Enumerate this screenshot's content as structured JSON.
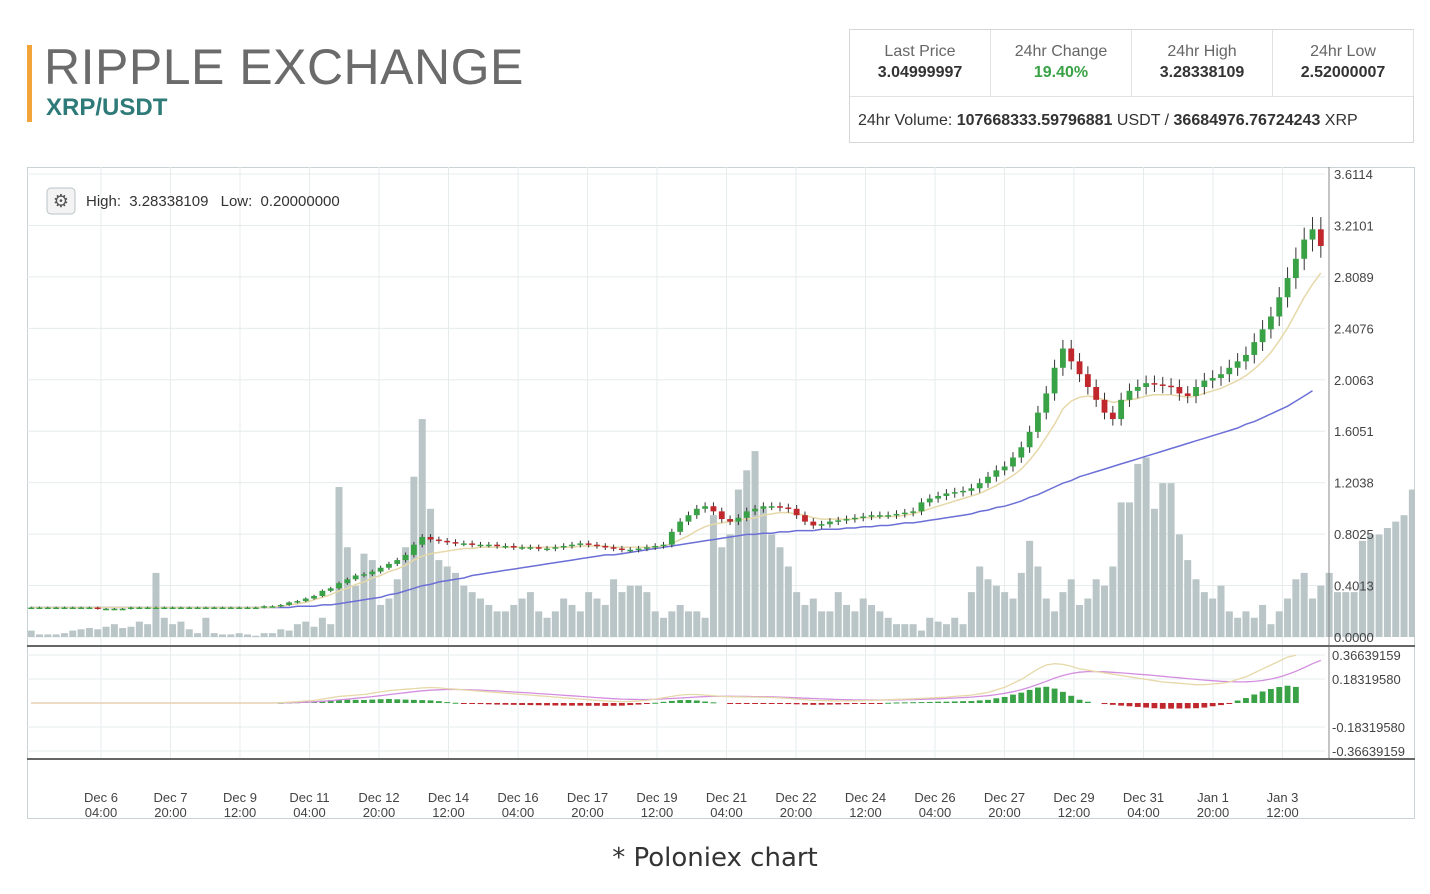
{
  "header": {
    "title": "RIPPLE EXCHANGE",
    "pair": "XRP/USDT"
  },
  "stats": {
    "last_price_label": "Last Price",
    "last_price": "3.04999997",
    "change_label": "24hr Change",
    "change": "19.40%",
    "high_label": "24hr High",
    "high": "3.28338109",
    "low_label": "24hr Low",
    "low": "2.52000007",
    "volume_label": "24hr Volume:",
    "volume_usdt": "107668333.59796881",
    "volume_usdt_unit": "USDT /",
    "volume_xrp": "36684976.76724243",
    "volume_xrp_unit": "XRP"
  },
  "chart_toolbar": {
    "high_label": "High:",
    "high_value": "3.28338109",
    "low_label": "Low:",
    "low_value": "0.20000000"
  },
  "colors": {
    "up": "#3aa246",
    "down": "#c0282d",
    "volume": "#b9c5c7",
    "ma_slow": "#6b6fd6",
    "ma_fast": "#e6d8a8",
    "macd_line": "#e6d8a8",
    "signal_line": "#d48ee0",
    "accent": "#f2a33a",
    "pair": "#2e7a78"
  },
  "caption": "* Poloniex chart",
  "chart_data": {
    "type": "candlestick",
    "price_axis": {
      "ticks": [
        "3.6114",
        "3.2101",
        "2.8089",
        "2.4076",
        "2.0063",
        "1.6051",
        "1.2038",
        "0.8025",
        "0.4013",
        "0.0000"
      ],
      "range": [
        0,
        3.6114
      ]
    },
    "macd_axis": {
      "ticks": [
        "0.36639159",
        "0.18319580",
        "-0.18319580",
        "-0.36639159"
      ],
      "range": [
        -0.3664,
        0.3664
      ]
    },
    "x_ticks": [
      {
        "day": "Dec 6",
        "time": "04:00"
      },
      {
        "day": "Dec 7",
        "time": "20:00"
      },
      {
        "day": "Dec 9",
        "time": "12:00"
      },
      {
        "day": "Dec 11",
        "time": "04:00"
      },
      {
        "day": "Dec 12",
        "time": "20:00"
      },
      {
        "day": "Dec 14",
        "time": "12:00"
      },
      {
        "day": "Dec 16",
        "time": "04:00"
      },
      {
        "day": "Dec 17",
        "time": "20:00"
      },
      {
        "day": "Dec 19",
        "time": "12:00"
      },
      {
        "day": "Dec 21",
        "time": "04:00"
      },
      {
        "day": "Dec 22",
        "time": "20:00"
      },
      {
        "day": "Dec 24",
        "time": "12:00"
      },
      {
        "day": "Dec 26",
        "time": "04:00"
      },
      {
        "day": "Dec 27",
        "time": "20:00"
      },
      {
        "day": "Dec 29",
        "time": "12:00"
      },
      {
        "day": "Dec 31",
        "time": "04:00"
      },
      {
        "day": "Jan 1",
        "time": "20:00"
      },
      {
        "day": "Jan 3",
        "time": "12:00"
      }
    ],
    "price_series": [
      0.23,
      0.23,
      0.23,
      0.23,
      0.23,
      0.23,
      0.23,
      0.23,
      0.22,
      0.22,
      0.22,
      0.22,
      0.23,
      0.23,
      0.23,
      0.23,
      0.23,
      0.23,
      0.23,
      0.23,
      0.23,
      0.23,
      0.23,
      0.23,
      0.23,
      0.23,
      0.23,
      0.23,
      0.24,
      0.24,
      0.25,
      0.27,
      0.28,
      0.3,
      0.32,
      0.36,
      0.38,
      0.42,
      0.45,
      0.48,
      0.49,
      0.51,
      0.54,
      0.57,
      0.6,
      0.64,
      0.72,
      0.78,
      0.76,
      0.75,
      0.74,
      0.73,
      0.73,
      0.72,
      0.72,
      0.72,
      0.71,
      0.71,
      0.7,
      0.7,
      0.7,
      0.69,
      0.69,
      0.7,
      0.71,
      0.72,
      0.73,
      0.72,
      0.71,
      0.7,
      0.69,
      0.68,
      0.68,
      0.69,
      0.7,
      0.71,
      0.72,
      0.82,
      0.9,
      0.95,
      1.0,
      1.02,
      0.98,
      0.92,
      0.9,
      0.93,
      0.98,
      1.0,
      1.02,
      1.02,
      1.01,
      1.0,
      0.95,
      0.9,
      0.87,
      0.88,
      0.9,
      0.91,
      0.92,
      0.93,
      0.94,
      0.95,
      0.95,
      0.95,
      0.96,
      0.97,
      0.98,
      1.05,
      1.08,
      1.1,
      1.12,
      1.13,
      1.14,
      1.16,
      1.2,
      1.25,
      1.3,
      1.33,
      1.4,
      1.48,
      1.6,
      1.75,
      1.9,
      2.1,
      2.25,
      2.15,
      2.05,
      1.95,
      1.85,
      1.75,
      1.7,
      1.85,
      1.92,
      1.95,
      1.98,
      1.97,
      1.96,
      1.95,
      1.9,
      1.88,
      1.95,
      2.0,
      2.02,
      2.05,
      2.1,
      2.15,
      2.2,
      2.3,
      2.4,
      2.5,
      2.65,
      2.8,
      2.95,
      3.1,
      3.18,
      3.05
    ],
    "volume_series": [
      0.05,
      0.02,
      0.02,
      0.02,
      0.03,
      0.05,
      0.06,
      0.07,
      0.06,
      0.08,
      0.1,
      0.07,
      0.08,
      0.12,
      0.1,
      0.5,
      0.15,
      0.1,
      0.12,
      0.06,
      0.03,
      0.15,
      0.03,
      0.02,
      0.02,
      0.03,
      0.02,
      0.01,
      0.03,
      0.03,
      0.06,
      0.05,
      0.1,
      0.12,
      0.08,
      0.15,
      0.1,
      1.17,
      0.7,
      0.4,
      0.65,
      0.6,
      0.25,
      0.3,
      0.45,
      0.7,
      1.25,
      1.7,
      1.0,
      0.6,
      0.55,
      0.5,
      0.4,
      0.35,
      0.3,
      0.25,
      0.2,
      0.2,
      0.25,
      0.3,
      0.35,
      0.2,
      0.15,
      0.2,
      0.3,
      0.25,
      0.2,
      0.35,
      0.3,
      0.25,
      0.45,
      0.35,
      0.4,
      0.4,
      0.35,
      0.2,
      0.15,
      0.2,
      0.25,
      0.2,
      0.2,
      0.15,
      0.95,
      0.7,
      0.8,
      1.15,
      1.3,
      1.45,
      1.0,
      0.8,
      0.7,
      0.55,
      0.35,
      0.25,
      0.3,
      0.2,
      0.2,
      0.35,
      0.25,
      0.2,
      0.3,
      0.25,
      0.2,
      0.15,
      0.1,
      0.1,
      0.1,
      0.05,
      0.15,
      0.12,
      0.1,
      0.15,
      0.1,
      0.35,
      0.55,
      0.45,
      0.4,
      0.35,
      0.3,
      0.5,
      0.75,
      0.55,
      0.3,
      0.2,
      0.35,
      0.45,
      0.25,
      0.3,
      0.45,
      0.4,
      0.55,
      1.05,
      1.05,
      1.35,
      1.4,
      1.0,
      1.2,
      1.2,
      0.8,
      0.6,
      0.45,
      0.35,
      0.3,
      0.4,
      0.2,
      0.15,
      0.2,
      0.15,
      0.25,
      0.1,
      0.2,
      0.3,
      0.45,
      0.5,
      0.3,
      0.4,
      0.5,
      0.35,
      0.35,
      0.35,
      0.75,
      0.8,
      0.8,
      0.85,
      0.9,
      0.95,
      1.15,
      0.8
    ],
    "ma_fast_series": [
      0.23,
      0.23,
      0.23,
      0.23,
      0.23,
      0.23,
      0.23,
      0.23,
      0.23,
      0.23,
      0.23,
      0.23,
      0.23,
      0.23,
      0.23,
      0.23,
      0.23,
      0.23,
      0.23,
      0.23,
      0.23,
      0.23,
      0.23,
      0.23,
      0.23,
      0.23,
      0.23,
      0.23,
      0.23,
      0.23,
      0.24,
      0.25,
      0.26,
      0.27,
      0.29,
      0.31,
      0.33,
      0.36,
      0.38,
      0.41,
      0.43,
      0.46,
      0.48,
      0.51,
      0.53,
      0.56,
      0.6,
      0.63,
      0.65,
      0.66,
      0.67,
      0.68,
      0.69,
      0.69,
      0.7,
      0.7,
      0.7,
      0.7,
      0.7,
      0.7,
      0.7,
      0.7,
      0.7,
      0.7,
      0.7,
      0.7,
      0.71,
      0.71,
      0.71,
      0.71,
      0.7,
      0.7,
      0.7,
      0.7,
      0.7,
      0.7,
      0.71,
      0.73,
      0.76,
      0.79,
      0.83,
      0.86,
      0.88,
      0.89,
      0.9,
      0.91,
      0.92,
      0.93,
      0.95,
      0.96,
      0.97,
      0.97,
      0.96,
      0.95,
      0.93,
      0.92,
      0.92,
      0.92,
      0.92,
      0.92,
      0.93,
      0.93,
      0.94,
      0.94,
      0.94,
      0.95,
      0.96,
      0.98,
      1.0,
      1.02,
      1.04,
      1.06,
      1.08,
      1.1,
      1.12,
      1.15,
      1.18,
      1.22,
      1.26,
      1.31,
      1.38,
      1.46,
      1.56,
      1.66,
      1.78,
      1.84,
      1.87,
      1.88,
      1.87,
      1.85,
      1.83,
      1.84,
      1.85,
      1.86,
      1.88,
      1.89,
      1.89,
      1.89,
      1.88,
      1.87,
      1.88,
      1.9,
      1.92,
      1.94,
      1.97,
      2.0,
      2.04,
      2.09,
      2.15,
      2.22,
      2.31,
      2.41,
      2.53,
      2.65,
      2.75,
      2.84
    ],
    "ma_slow_series": [
      0.23,
      0.23,
      0.23,
      0.23,
      0.23,
      0.23,
      0.23,
      0.23,
      0.23,
      0.23,
      0.23,
      0.23,
      0.23,
      0.23,
      0.23,
      0.23,
      0.23,
      0.23,
      0.23,
      0.23,
      0.23,
      0.23,
      0.23,
      0.23,
      0.23,
      0.23,
      0.23,
      0.23,
      0.23,
      0.23,
      0.23,
      0.23,
      0.24,
      0.24,
      0.24,
      0.25,
      0.25,
      0.26,
      0.27,
      0.28,
      0.29,
      0.3,
      0.31,
      0.33,
      0.34,
      0.36,
      0.38,
      0.4,
      0.41,
      0.43,
      0.44,
      0.45,
      0.46,
      0.48,
      0.49,
      0.5,
      0.51,
      0.52,
      0.53,
      0.54,
      0.55,
      0.56,
      0.57,
      0.58,
      0.59,
      0.6,
      0.61,
      0.62,
      0.63,
      0.64,
      0.64,
      0.65,
      0.66,
      0.67,
      0.68,
      0.69,
      0.7,
      0.71,
      0.72,
      0.73,
      0.74,
      0.75,
      0.76,
      0.77,
      0.78,
      0.79,
      0.8,
      0.8,
      0.81,
      0.81,
      0.82,
      0.82,
      0.83,
      0.83,
      0.83,
      0.84,
      0.84,
      0.84,
      0.85,
      0.85,
      0.86,
      0.86,
      0.87,
      0.87,
      0.88,
      0.89,
      0.89,
      0.9,
      0.91,
      0.92,
      0.93,
      0.94,
      0.95,
      0.96,
      0.98,
      0.99,
      1.01,
      1.02,
      1.04,
      1.06,
      1.09,
      1.11,
      1.14,
      1.17,
      1.2,
      1.22,
      1.25,
      1.27,
      1.29,
      1.31,
      1.33,
      1.35,
      1.37,
      1.39,
      1.41,
      1.43,
      1.45,
      1.47,
      1.49,
      1.51,
      1.53,
      1.55,
      1.57,
      1.59,
      1.61,
      1.63,
      1.66,
      1.68,
      1.71,
      1.74,
      1.77,
      1.8,
      1.84,
      1.88,
      1.92
    ],
    "macd_series": [
      0,
      0,
      0,
      0,
      0,
      0,
      0,
      0,
      0,
      0,
      0,
      0,
      0,
      0,
      0,
      0,
      0,
      0,
      0,
      0,
      0,
      0,
      0,
      0,
      0,
      0,
      0,
      0,
      0,
      0,
      0.003,
      0.006,
      0.01,
      0.015,
      0.02,
      0.03,
      0.04,
      0.05,
      0.055,
      0.06,
      0.065,
      0.075,
      0.085,
      0.095,
      0.1,
      0.105,
      0.11,
      0.115,
      0.118,
      0.115,
      0.11,
      0.105,
      0.1,
      0.095,
      0.09,
      0.085,
      0.08,
      0.075,
      0.07,
      0.065,
      0.06,
      0.055,
      0.05,
      0.045,
      0.04,
      0.035,
      0.03,
      0.025,
      0.02,
      0.015,
      0.012,
      0.01,
      0.012,
      0.015,
      0.02,
      0.03,
      0.04,
      0.05,
      0.06,
      0.065,
      0.065,
      0.06,
      0.055,
      0.05,
      0.048,
      0.047,
      0.046,
      0.045,
      0.044,
      0.042,
      0.04,
      0.035,
      0.03,
      0.025,
      0.02,
      0.018,
      0.017,
      0.016,
      0.016,
      0.017,
      0.018,
      0.02,
      0.022,
      0.025,
      0.028,
      0.03,
      0.032,
      0.035,
      0.038,
      0.042,
      0.045,
      0.05,
      0.055,
      0.06,
      0.07,
      0.08,
      0.1,
      0.12,
      0.15,
      0.18,
      0.22,
      0.26,
      0.29,
      0.3,
      0.295,
      0.28,
      0.26,
      0.25,
      0.24,
      0.23,
      0.22,
      0.21,
      0.2,
      0.19,
      0.18,
      0.17,
      0.16,
      0.155,
      0.15,
      0.145,
      0.14,
      0.14,
      0.145,
      0.15,
      0.16,
      0.18,
      0.2,
      0.23,
      0.26,
      0.29,
      0.32,
      0.35,
      0.365
    ],
    "signal_series": [
      0,
      0,
      0,
      0,
      0,
      0,
      0,
      0,
      0,
      0,
      0,
      0,
      0,
      0,
      0,
      0,
      0,
      0,
      0,
      0,
      0,
      0,
      0,
      0,
      0,
      0,
      0,
      0,
      0,
      0,
      0.001,
      0.002,
      0.004,
      0.006,
      0.009,
      0.013,
      0.018,
      0.024,
      0.03,
      0.036,
      0.042,
      0.049,
      0.056,
      0.064,
      0.072,
      0.079,
      0.086,
      0.093,
      0.098,
      0.101,
      0.103,
      0.103,
      0.102,
      0.1,
      0.098,
      0.095,
      0.092,
      0.088,
      0.084,
      0.08,
      0.076,
      0.072,
      0.068,
      0.064,
      0.059,
      0.055,
      0.05,
      0.046,
      0.041,
      0.037,
      0.033,
      0.03,
      0.028,
      0.027,
      0.027,
      0.028,
      0.031,
      0.034,
      0.038,
      0.042,
      0.046,
      0.049,
      0.05,
      0.051,
      0.051,
      0.05,
      0.05,
      0.049,
      0.048,
      0.047,
      0.045,
      0.043,
      0.04,
      0.037,
      0.034,
      0.031,
      0.029,
      0.027,
      0.025,
      0.024,
      0.023,
      0.023,
      0.023,
      0.023,
      0.024,
      0.025,
      0.026,
      0.028,
      0.03,
      0.032,
      0.035,
      0.038,
      0.041,
      0.045,
      0.05,
      0.056,
      0.064,
      0.074,
      0.086,
      0.101,
      0.12,
      0.142,
      0.166,
      0.19,
      0.21,
      0.225,
      0.235,
      0.24,
      0.24,
      0.238,
      0.234,
      0.23,
      0.225,
      0.22,
      0.215,
      0.21,
      0.204,
      0.198,
      0.192,
      0.186,
      0.18,
      0.175,
      0.17,
      0.166,
      0.163,
      0.161,
      0.162,
      0.165,
      0.172,
      0.183,
      0.198,
      0.218,
      0.242,
      0.27,
      0.3,
      0.325
    ]
  }
}
